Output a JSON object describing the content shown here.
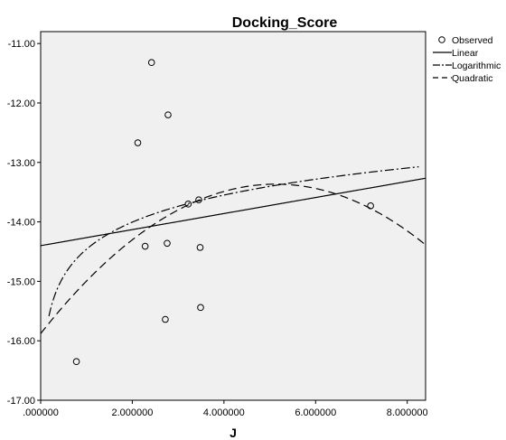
{
  "chart_data": {
    "type": "scatter",
    "title": "Docking_Score",
    "xlabel": "J",
    "ylabel": "",
    "xlim": [
      0,
      8.4
    ],
    "ylim": [
      -17.0,
      -10.8
    ],
    "x_ticks": [
      0,
      2,
      4,
      6,
      8
    ],
    "x_tick_labels": [
      ".000000",
      "2.000000",
      "4.000000",
      "6.000000",
      "8.000000"
    ],
    "y_ticks": [
      -11,
      -12,
      -13,
      -14,
      -15,
      -16,
      -17
    ],
    "y_tick_labels": [
      "-11.00",
      "-12.00",
      "-13.00",
      "-14.00",
      "-15.00",
      "-16.00",
      "-17.00"
    ],
    "grid": false,
    "legend_position": "right",
    "legend": [
      {
        "label": "Observed",
        "style": "circle"
      },
      {
        "label": "Linear",
        "style": "solid"
      },
      {
        "label": "Logarithmic",
        "style": "dashdot"
      },
      {
        "label": "Quadratic",
        "style": "dashed"
      }
    ],
    "observed": {
      "x": [
        0.78,
        2.12,
        2.28,
        2.42,
        2.72,
        2.76,
        2.78,
        3.22,
        3.45,
        3.48,
        3.49,
        7.2
      ],
      "y": [
        -16.35,
        -12.67,
        -14.41,
        -11.32,
        -15.64,
        -14.36,
        -12.2,
        -13.7,
        -13.63,
        -14.43,
        -15.44,
        -13.73
      ]
    },
    "linear": {
      "intercept": -14.4,
      "slope": 0.135
    },
    "logarithmic": {
      "intercept": -14.46,
      "slope": 0.657
    },
    "quadratic": {
      "a": -15.88,
      "b": 0.98,
      "c": -0.0955
    },
    "colors": {
      "plot_background": "#f0f0f0",
      "line": "#000000"
    }
  }
}
